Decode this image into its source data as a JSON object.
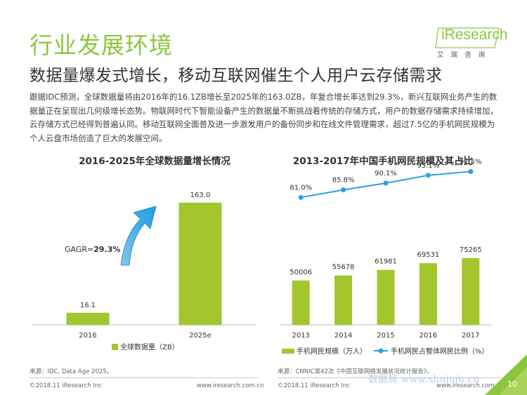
{
  "header": {
    "section_title": "行业发展环境",
    "headline": "数据量爆发式增长，移动互联网催生个人用户云存储需求",
    "logo_text": "iResearch",
    "logo_subtitle": "艾瑞咨询"
  },
  "intro_text": "跟据IDC预测，全球数据量将由2016年的16.1ZB增长至2025年的163.0ZB，年复合增长率达到29.3%，新兴互联网业务产生的数据量正在呈现出几何级增长态势。物联网时代下智能设备产生的数据量不断挑战着传统的存储方式，用户的数据存储需求持续增加，云存储方式已经得到普遍认同。移动互联网全面普及进一步激发用户的备份同步和在线文件管理需求，超过7.5亿的手机网民规模为个人云盘市场创造了巨大的发展空间。",
  "colors": {
    "accent_green": "#8cc63f",
    "bar_green": "#a2c62c",
    "line_blue": "#27a2e4",
    "arrow_blue": "#1e9be0"
  },
  "chart_data": [
    {
      "type": "bar",
      "title": "2016-2025年全球数据量增长情况",
      "categories": [
        "2016",
        "2025e"
      ],
      "series": [
        {
          "name": "全球数据量（ZB）",
          "values": [
            16.1,
            163.0
          ]
        }
      ],
      "data_labels": [
        "16.1",
        "163.0"
      ],
      "annotation": {
        "label": "GAGR=",
        "value": "29.3%"
      },
      "ylim": [
        0,
        175
      ],
      "legend_position": "bottom"
    },
    {
      "type": "bar",
      "title": "2013-2017年中国手机网民规模及其占比",
      "categories": [
        "2013",
        "2014",
        "2015",
        "2016",
        "2017"
      ],
      "series": [
        {
          "name": "手机网民规模（万人）",
          "type": "bar",
          "values": [
            50006,
            55678,
            61981,
            69531,
            75265
          ],
          "data_labels": [
            "50006",
            "55678",
            "61981",
            "69531",
            "75265"
          ]
        },
        {
          "name": "手机网民占整体网民比例（%）",
          "type": "line",
          "values": [
            81.0,
            85.8,
            90.1,
            95.1,
            97.5
          ],
          "data_labels": [
            "81.0%",
            "85.8%",
            "90.1%",
            "95.1%",
            "97.5%"
          ]
        }
      ],
      "ylim_bar": [
        0,
        140000
      ],
      "ylim_line": [
        0,
        120
      ],
      "legend_position": "bottom"
    }
  ],
  "footer": {
    "source_left": "来源：IDC, Data Age 2025。",
    "source_right": "来源：CNNIC第42次《中国互联网络发展状况统计报告》。",
    "copyright_left": "©2018.11 iResearch Inc",
    "url_left": "www.iresearch.com.cn",
    "copyright_right": "©2018.11 iResearch Inc",
    "url_right": "www.iresearch.com.cn",
    "page_number": "10",
    "watermark": "数据局 www.shujuju.cn"
  }
}
